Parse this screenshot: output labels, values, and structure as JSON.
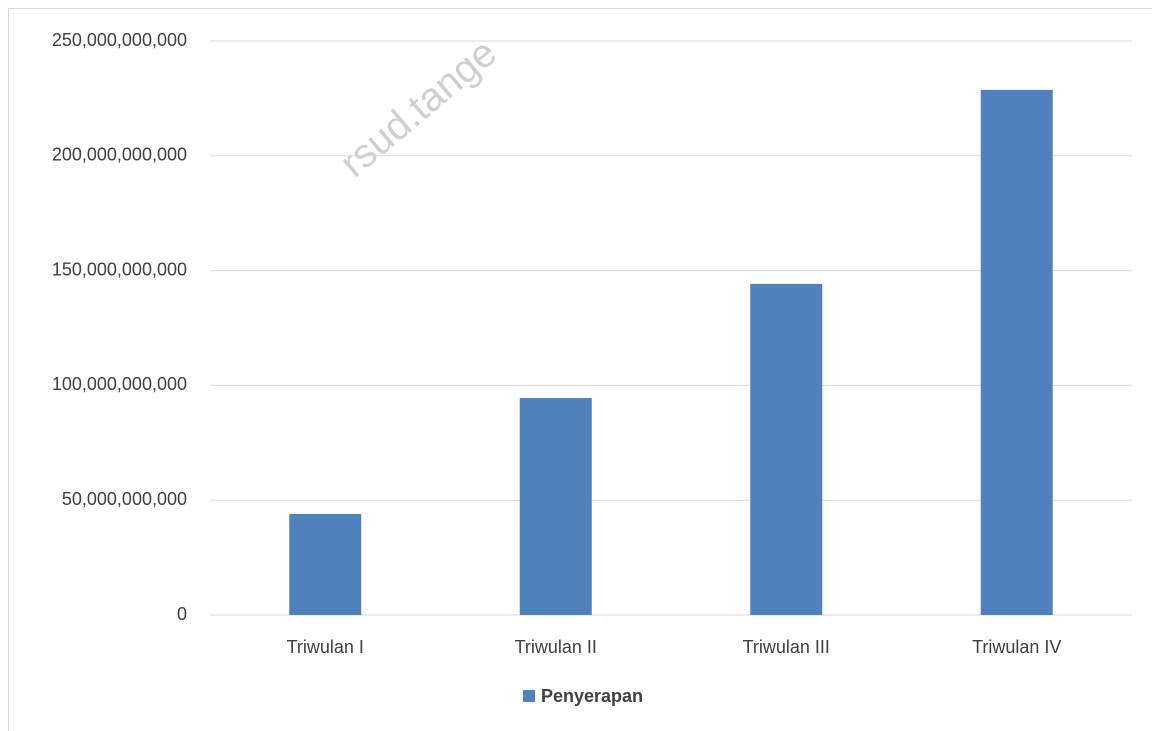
{
  "chart_data": {
    "type": "bar",
    "categories": [
      "Triwulan I",
      "Triwulan II",
      "Triwulan III",
      "Triwulan IV"
    ],
    "series": [
      {
        "name": "Penyerapan",
        "color": "#4f81bd",
        "values": [
          44000000000,
          94500000000,
          144200000000,
          228700000000
        ]
      }
    ],
    "ylim": [
      0,
      250000000000
    ],
    "yticks": [
      {
        "value": 0,
        "label": "0"
      },
      {
        "value": 50000000000,
        "label": "50,000,000,000"
      },
      {
        "value": 100000000000,
        "label": "100,000,000,000"
      },
      {
        "value": 150000000000,
        "label": "150,000,000,000"
      },
      {
        "value": 200000000000,
        "label": "200,000,000,000"
      },
      {
        "value": 250000000000,
        "label": "250,000,000,000"
      }
    ],
    "grid": true,
    "legend": "bottom",
    "watermark": "rsud.tange"
  }
}
